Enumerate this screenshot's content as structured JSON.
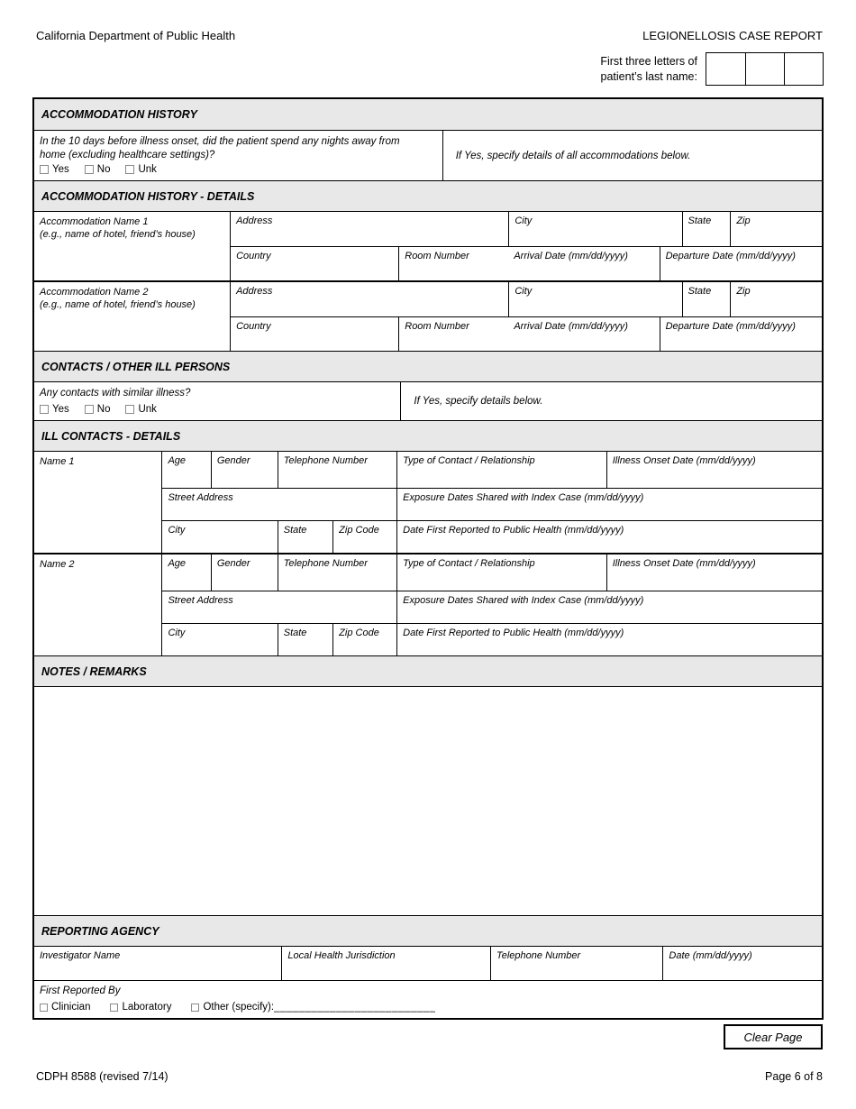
{
  "colors": {
    "section_band": "#e8e8e8",
    "border": "#000000",
    "checkbox_border": "#8a8a8a"
  },
  "header": {
    "agency": "California Department of Public Health",
    "title": "LEGIONELLOSIS CASE REPORT",
    "name_label_line1": "First three letters of",
    "name_label_line2": "patient’s last name:",
    "name_boxes": [
      "",
      "",
      ""
    ]
  },
  "accommodation_history": {
    "title": "ACCOMMODATION HISTORY",
    "question_line1": "In the 10 days before illness onset, did the patient spend any nights away from",
    "question_line2": "home (excluding healthcare settings)?",
    "options": [
      "Yes",
      "No",
      "Unk"
    ],
    "if_yes": "If Yes, specify details of all accommodations below.",
    "details_title": "ACCOMMODATION HISTORY - DETAILS",
    "rows": [
      {
        "name_label": "Accommodation Name 1",
        "name_hint": "(e.g., name of hotel, friend’s house)",
        "address": "Address",
        "city": "City",
        "state": "State",
        "zip": "Zip",
        "country": "Country",
        "room": "Room Number",
        "arrival": "Arrival Date (mm/dd/yyyy)",
        "departure": "Departure Date (mm/dd/yyyy)"
      },
      {
        "name_label": "Accommodation Name 2",
        "name_hint": "(e.g., name of hotel, friend’s house)",
        "address": "Address",
        "city": "City",
        "state": "State",
        "zip": "Zip",
        "country": "Country",
        "room": "Room Number",
        "arrival": "Arrival Date (mm/dd/yyyy)",
        "departure": "Departure Date (mm/dd/yyyy)"
      }
    ]
  },
  "contacts": {
    "title": "CONTACTS / OTHER ILL PERSONS",
    "question": "Any contacts with similar illness?",
    "options": [
      "Yes",
      "No",
      "Unk"
    ],
    "if_yes": "If Yes, specify details below.",
    "details_title": "ILL CONTACTS - DETAILS",
    "rows": [
      {
        "name_label": "Name 1",
        "age": "Age",
        "gender": "Gender",
        "phone": "Telephone Number",
        "type": "Type of Contact / Relationship",
        "onset": "Illness Onset Date (mm/dd/yyyy)",
        "street": "Street Address",
        "exposure": "Exposure Dates Shared with Index Case (mm/dd/yyyy)",
        "city": "City",
        "state": "State",
        "zip": "Zip Code",
        "reported": "Date First Reported to Public Health (mm/dd/yyyy)"
      },
      {
        "name_label": "Name 2",
        "age": "Age",
        "gender": "Gender",
        "phone": "Telephone Number",
        "type": "Type of Contact / Relationship",
        "onset": "Illness Onset Date (mm/dd/yyyy)",
        "street": "Street Address",
        "exposure": "Exposure Dates Shared with Index Case (mm/dd/yyyy)",
        "city": "City",
        "state": "State",
        "zip": "Zip Code",
        "reported": "Date First Reported to Public Health (mm/dd/yyyy)"
      }
    ]
  },
  "notes": {
    "title": "NOTES / REMARKS",
    "content": ""
  },
  "reporting_agency": {
    "title": "REPORTING AGENCY",
    "investigator": "Investigator Name",
    "jurisdiction": "Local Health Jurisdiction",
    "phone": "Telephone Number",
    "date": "Date (mm/dd/yyyy)",
    "first_reported_by": "First Reported By",
    "options": [
      "Clinician",
      "Laboratory",
      "Other (specify):"
    ],
    "other_line": "__________________________"
  },
  "footer": {
    "clear_button": "Clear Page",
    "form_number": "CDPH 8588 (revised 7/14)",
    "page": "Page 6 of 8"
  }
}
